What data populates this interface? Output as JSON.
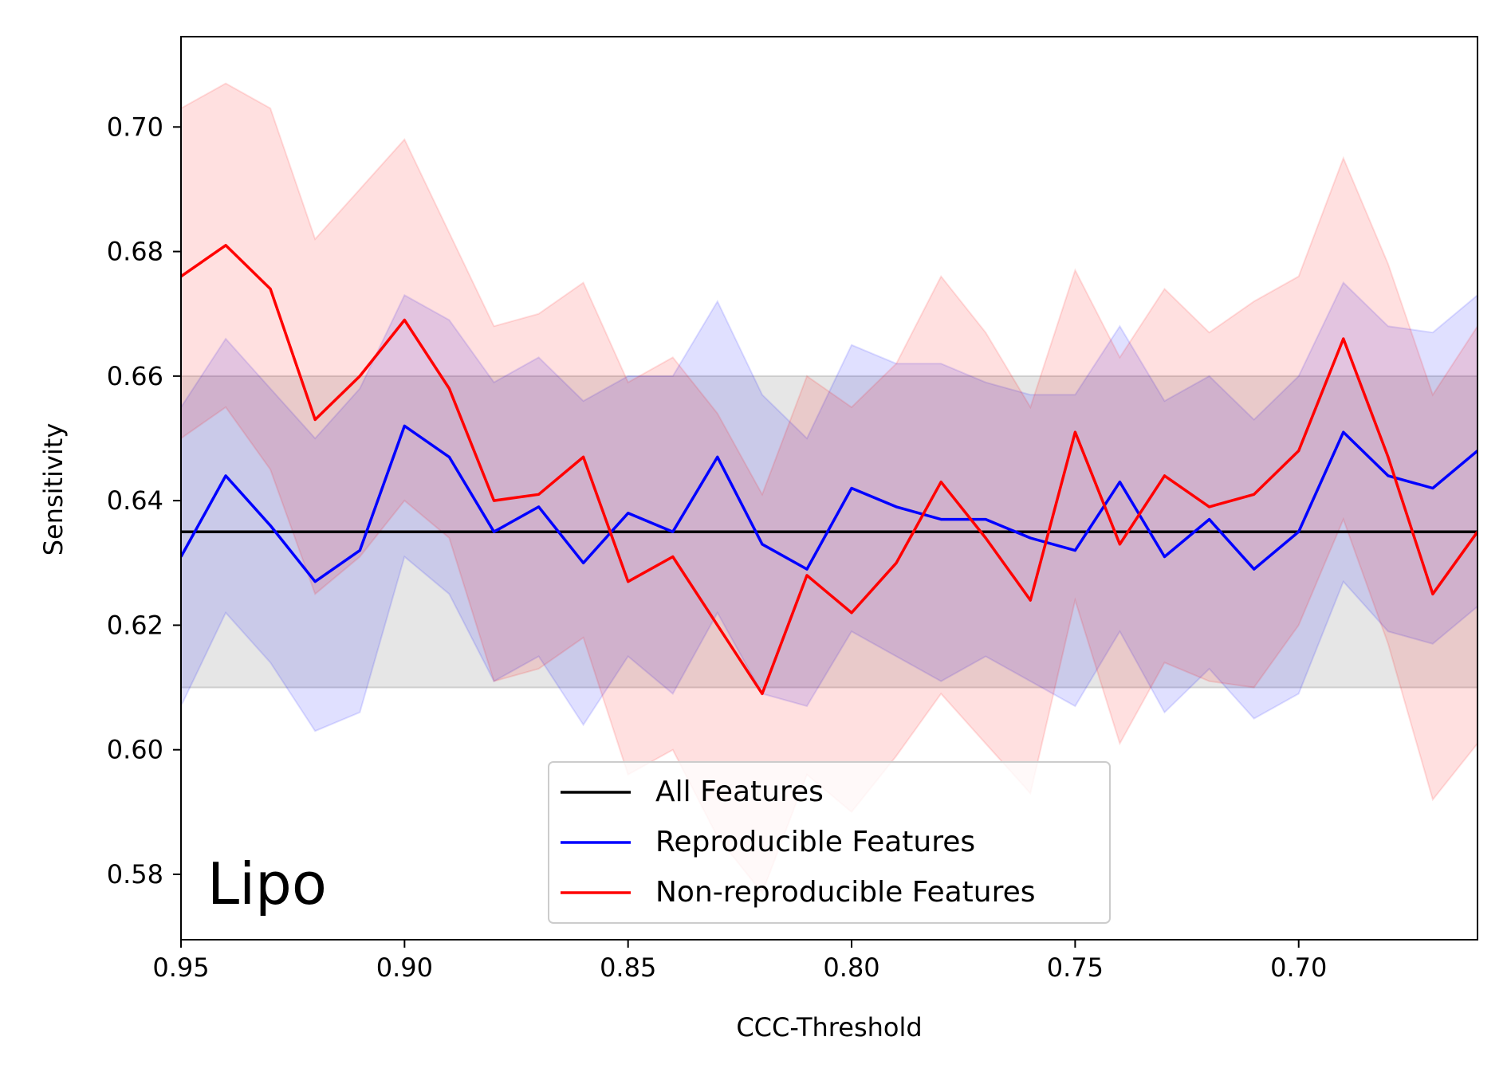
{
  "chart_data": {
    "type": "line",
    "title": "",
    "annotation": "Lipo",
    "xlabel": "CCC-Threshold",
    "ylabel": "Sensitivity",
    "xlim": [
      0.95,
      0.66
    ],
    "ylim": [
      0.5695,
      0.7145
    ],
    "x_inverted": true,
    "xticks": [
      0.95,
      0.9,
      0.85,
      0.8,
      0.75,
      0.7
    ],
    "xtick_labels": [
      "0.95",
      "0.90",
      "0.85",
      "0.80",
      "0.75",
      "0.70"
    ],
    "yticks": [
      0.58,
      0.6,
      0.62,
      0.64,
      0.66,
      0.68,
      0.7
    ],
    "ytick_labels": [
      "0.58",
      "0.60",
      "0.62",
      "0.64",
      "0.66",
      "0.68",
      "0.70"
    ],
    "grid": false,
    "legend": {
      "position": "bottom-center",
      "entries": [
        "All Features",
        "Reproducible Features",
        "Non-reproducible Features"
      ]
    },
    "x": [
      0.95,
      0.94,
      0.93,
      0.92,
      0.91,
      0.9,
      0.89,
      0.88,
      0.87,
      0.86,
      0.85,
      0.84,
      0.83,
      0.82,
      0.81,
      0.8,
      0.79,
      0.78,
      0.77,
      0.76,
      0.75,
      0.74,
      0.73,
      0.72,
      0.71,
      0.7,
      0.69,
      0.68,
      0.67,
      0.66
    ],
    "series": [
      {
        "name": "All Features",
        "color": "#000000",
        "band_color": "#808080",
        "constant": 0.635,
        "band": [
          0.61,
          0.66
        ]
      },
      {
        "name": "Reproducible Features",
        "color": "#0000ff",
        "band_color": "#0000ff",
        "values": [
          0.631,
          0.644,
          0.636,
          0.627,
          0.632,
          0.652,
          0.647,
          0.635,
          0.639,
          0.63,
          0.638,
          0.635,
          0.647,
          0.633,
          0.629,
          0.642,
          0.639,
          0.637,
          0.637,
          0.634,
          0.632,
          0.643,
          0.631,
          0.637,
          0.629,
          0.635,
          0.651,
          0.644,
          0.642,
          0.648
        ],
        "upper": [
          0.655,
          0.666,
          0.658,
          0.65,
          0.658,
          0.673,
          0.669,
          0.659,
          0.663,
          0.656,
          0.66,
          0.66,
          0.672,
          0.657,
          0.65,
          0.665,
          0.662,
          0.662,
          0.659,
          0.657,
          0.657,
          0.668,
          0.656,
          0.66,
          0.653,
          0.66,
          0.675,
          0.668,
          0.667,
          0.673
        ],
        "lower": [
          0.607,
          0.622,
          0.614,
          0.603,
          0.606,
          0.631,
          0.625,
          0.611,
          0.615,
          0.604,
          0.615,
          0.609,
          0.622,
          0.609,
          0.607,
          0.619,
          0.615,
          0.611,
          0.615,
          0.611,
          0.607,
          0.619,
          0.606,
          0.613,
          0.605,
          0.609,
          0.627,
          0.619,
          0.617,
          0.623
        ]
      },
      {
        "name": "Non-reproducible Features",
        "color": "#ff0000",
        "band_color": "#ff0000",
        "values": [
          0.676,
          0.681,
          0.674,
          0.653,
          0.66,
          0.669,
          0.658,
          0.64,
          0.641,
          0.647,
          0.627,
          0.631,
          0.62,
          0.609,
          0.628,
          0.622,
          0.63,
          0.643,
          0.634,
          0.624,
          0.651,
          0.633,
          0.644,
          0.639,
          0.641,
          0.648,
          0.666,
          0.647,
          0.625,
          0.635
        ],
        "upper": [
          0.703,
          0.707,
          0.703,
          0.682,
          0.69,
          0.698,
          0.683,
          0.668,
          0.67,
          0.675,
          0.659,
          0.663,
          0.654,
          0.641,
          0.66,
          0.655,
          0.662,
          0.676,
          0.667,
          0.655,
          0.677,
          0.663,
          0.674,
          0.667,
          0.672,
          0.676,
          0.695,
          0.678,
          0.657,
          0.668
        ],
        "lower": [
          0.65,
          0.655,
          0.645,
          0.625,
          0.631,
          0.64,
          0.634,
          0.611,
          0.613,
          0.618,
          0.596,
          0.6,
          0.586,
          0.577,
          0.596,
          0.59,
          0.599,
          0.609,
          0.601,
          0.593,
          0.624,
          0.601,
          0.614,
          0.611,
          0.61,
          0.62,
          0.637,
          0.617,
          0.592,
          0.601
        ]
      }
    ]
  }
}
